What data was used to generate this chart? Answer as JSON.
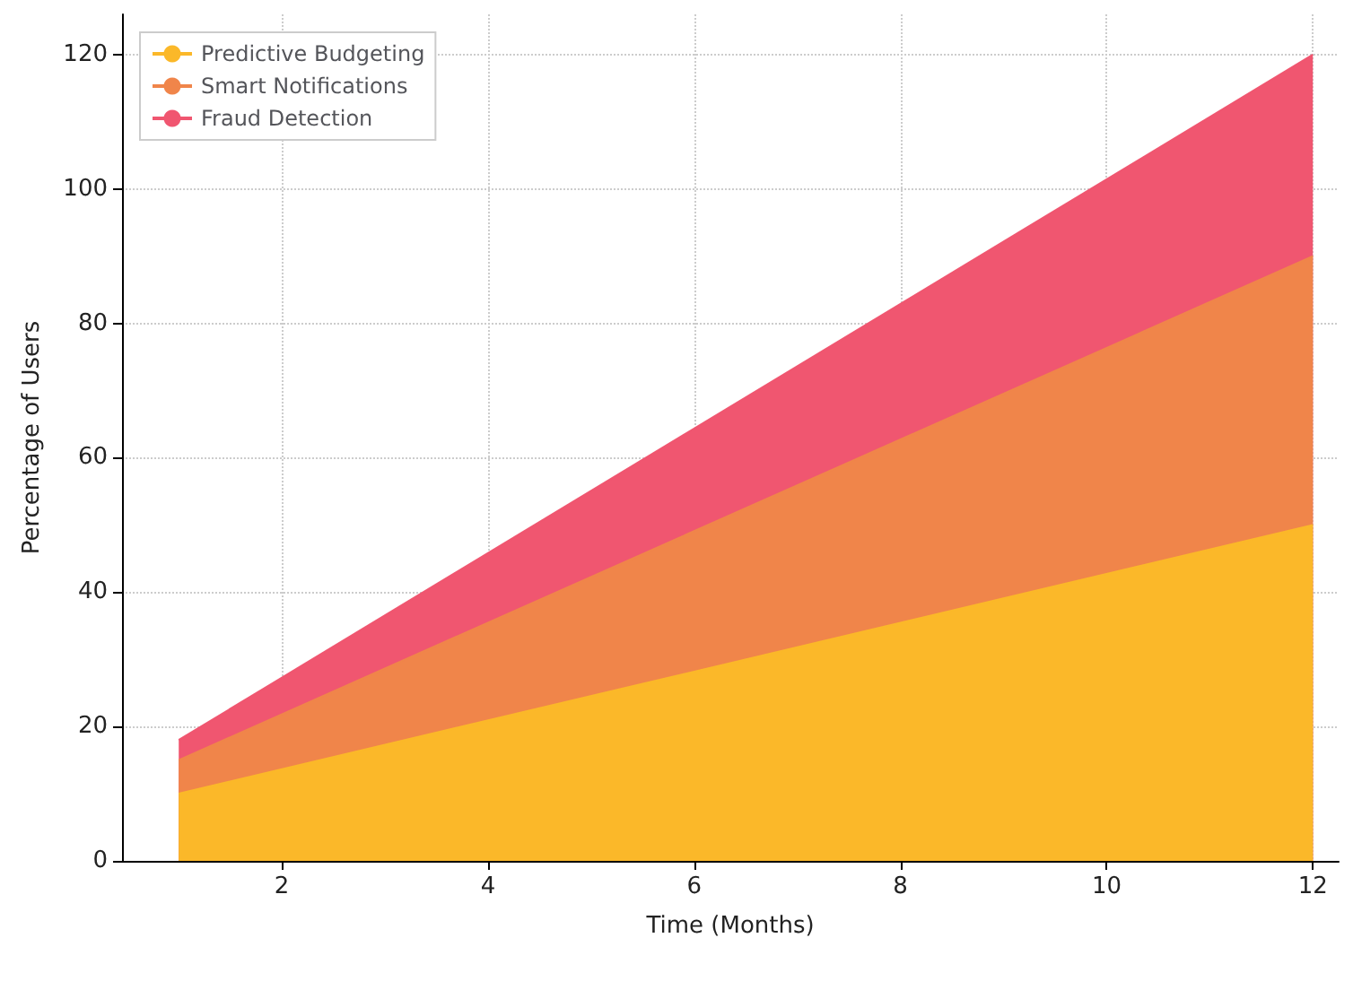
{
  "chart_data": {
    "type": "area",
    "stacked": true,
    "xlabel": "Time (Months)",
    "ylabel": "Percentage of Users",
    "x": [
      1,
      12
    ],
    "series": [
      {
        "name": "Predictive Budgeting",
        "color": "#fbb829",
        "values": [
          10,
          50
        ]
      },
      {
        "name": "Smart Notifications",
        "color": "#f0854a",
        "values": [
          5,
          40
        ]
      },
      {
        "name": "Fraud Detection",
        "color": "#f05670",
        "values": [
          3,
          30
        ]
      }
    ],
    "xlim": [
      0.45,
      12.25
    ],
    "xticks": [
      2,
      4,
      6,
      8,
      10,
      12
    ],
    "ylim": [
      0,
      126
    ],
    "yticks": [
      0,
      20,
      40,
      60,
      80,
      100,
      120
    ],
    "grid": true,
    "legend": "top left"
  }
}
